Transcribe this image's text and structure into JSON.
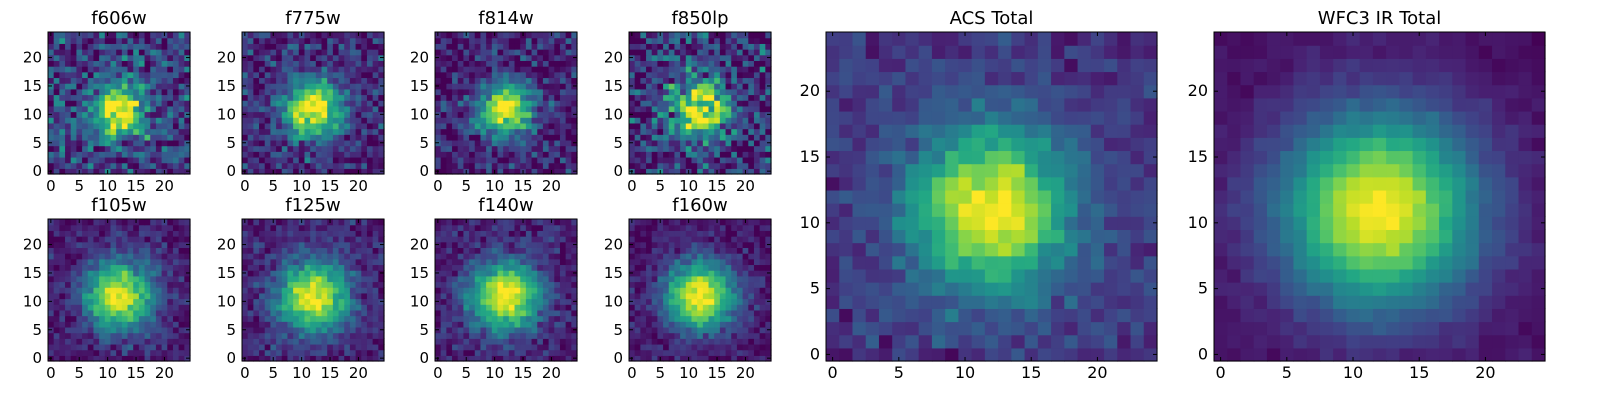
{
  "chart_data": [
    {
      "id": "f606w",
      "type": "heatmap",
      "title": "f606w",
      "noise": 0.22,
      "bg": 0.18,
      "amp": 0.85,
      "sigma": 3.3,
      "seed": 11,
      "x_range": [
        0,
        24
      ],
      "y_range": [
        0,
        24
      ],
      "x_ticks": [
        0,
        5,
        10,
        15,
        20
      ],
      "y_ticks": [
        0,
        5,
        10,
        15,
        20
      ],
      "x_tick_labels": [
        "0",
        "5",
        "10",
        "15",
        "20"
      ],
      "y_tick_labels": [
        "0",
        "5",
        "10",
        "15",
        "20"
      ]
    },
    {
      "id": "f775w",
      "type": "heatmap",
      "title": "f775w",
      "noise": 0.16,
      "bg": 0.12,
      "amp": 0.9,
      "sigma": 3.6,
      "seed": 23,
      "x_range": [
        0,
        24
      ],
      "y_range": [
        0,
        24
      ],
      "x_ticks": [
        0,
        5,
        10,
        15,
        20
      ],
      "y_ticks": [
        0,
        5,
        10,
        15,
        20
      ],
      "x_tick_labels": [
        "0",
        "5",
        "10",
        "15",
        "20"
      ],
      "y_tick_labels": [
        "0",
        "5",
        "10",
        "15",
        "20"
      ]
    },
    {
      "id": "f814w",
      "type": "heatmap",
      "title": "f814w",
      "noise": 0.16,
      "bg": 0.1,
      "amp": 0.9,
      "sigma": 3.3,
      "seed": 37,
      "x_range": [
        0,
        24
      ],
      "y_range": [
        0,
        24
      ],
      "x_ticks": [
        0,
        5,
        10,
        15,
        20
      ],
      "y_ticks": [
        0,
        5,
        10,
        15,
        20
      ],
      "x_tick_labels": [
        "0",
        "5",
        "10",
        "15",
        "20"
      ],
      "y_tick_labels": [
        "0",
        "5",
        "10",
        "15",
        "20"
      ]
    },
    {
      "id": "f850lp",
      "type": "heatmap",
      "title": "f850lp",
      "noise": 0.24,
      "bg": 0.14,
      "amp": 0.85,
      "sigma": 3.6,
      "seed": 41,
      "x_range": [
        0,
        24
      ],
      "y_range": [
        0,
        24
      ],
      "x_ticks": [
        0,
        5,
        10,
        15,
        20
      ],
      "y_ticks": [
        0,
        5,
        10,
        15,
        20
      ],
      "x_tick_labels": [
        "0",
        "5",
        "10",
        "15",
        "20"
      ],
      "y_tick_labels": [
        "0",
        "5",
        "10",
        "15",
        "20"
      ]
    },
    {
      "id": "f105w",
      "type": "heatmap",
      "title": "f105w",
      "noise": 0.1,
      "bg": 0.08,
      "amp": 0.92,
      "sigma": 4.2,
      "seed": 53,
      "x_range": [
        0,
        24
      ],
      "y_range": [
        0,
        24
      ],
      "x_ticks": [
        0,
        5,
        10,
        15,
        20
      ],
      "y_ticks": [
        0,
        5,
        10,
        15,
        20
      ],
      "x_tick_labels": [
        "0",
        "5",
        "10",
        "15",
        "20"
      ],
      "y_tick_labels": [
        "0",
        "5",
        "10",
        "15",
        "20"
      ]
    },
    {
      "id": "f125w",
      "type": "heatmap",
      "title": "f125w",
      "noise": 0.1,
      "bg": 0.1,
      "amp": 0.9,
      "sigma": 4.4,
      "seed": 67,
      "x_range": [
        0,
        24
      ],
      "y_range": [
        0,
        24
      ],
      "x_ticks": [
        0,
        5,
        10,
        15,
        20
      ],
      "y_ticks": [
        0,
        5,
        10,
        15,
        20
      ],
      "x_tick_labels": [
        "0",
        "5",
        "10",
        "15",
        "20"
      ],
      "y_tick_labels": [
        "0",
        "5",
        "10",
        "15",
        "20"
      ]
    },
    {
      "id": "f140w",
      "type": "heatmap",
      "title": "f140w",
      "noise": 0.1,
      "bg": 0.08,
      "amp": 0.92,
      "sigma": 4.4,
      "seed": 71,
      "x_range": [
        0,
        24
      ],
      "y_range": [
        0,
        24
      ],
      "x_ticks": [
        0,
        5,
        10,
        15,
        20
      ],
      "y_ticks": [
        0,
        5,
        10,
        15,
        20
      ],
      "x_tick_labels": [
        "0",
        "5",
        "10",
        "15",
        "20"
      ],
      "y_tick_labels": [
        "0",
        "5",
        "10",
        "15",
        "20"
      ]
    },
    {
      "id": "f160w",
      "type": "heatmap",
      "title": "f160w",
      "noise": 0.09,
      "bg": 0.06,
      "amp": 0.95,
      "sigma": 4.3,
      "seed": 83,
      "x_range": [
        0,
        24
      ],
      "y_range": [
        0,
        24
      ],
      "x_ticks": [
        0,
        5,
        10,
        15,
        20
      ],
      "y_ticks": [
        0,
        5,
        10,
        15,
        20
      ],
      "x_tick_labels": [
        "0",
        "5",
        "10",
        "15",
        "20"
      ],
      "y_tick_labels": [
        "0",
        "5",
        "10",
        "15",
        "20"
      ]
    },
    {
      "id": "acs-total",
      "type": "heatmap",
      "title": "ACS Total",
      "noise": 0.08,
      "bg": 0.16,
      "amp": 0.86,
      "sigma": 4.2,
      "seed": 97,
      "x_range": [
        0,
        24
      ],
      "y_range": [
        0,
        24
      ],
      "x_ticks": [
        0,
        5,
        10,
        15,
        20
      ],
      "y_ticks": [
        0,
        5,
        10,
        15,
        20
      ],
      "x_tick_labels": [
        "0",
        "5",
        "10",
        "15",
        "20"
      ],
      "y_tick_labels": [
        "0",
        "5",
        "10",
        "15",
        "20"
      ]
    },
    {
      "id": "wfc3-ir-total",
      "type": "heatmap",
      "title": "WFC3 IR Total",
      "noise": 0.03,
      "bg": 0.04,
      "amp": 0.96,
      "sigma": 5.2,
      "seed": 101,
      "x_range": [
        0,
        24
      ],
      "y_range": [
        0,
        24
      ],
      "x_ticks": [
        0,
        5,
        10,
        15,
        20
      ],
      "y_ticks": [
        0,
        5,
        10,
        15,
        20
      ],
      "x_tick_labels": [
        "0",
        "5",
        "10",
        "15",
        "20"
      ],
      "y_tick_labels": [
        "0",
        "5",
        "10",
        "15",
        "20"
      ]
    }
  ],
  "colormap": "viridis",
  "source_center": [
    12,
    11
  ],
  "grid_size": 25
}
